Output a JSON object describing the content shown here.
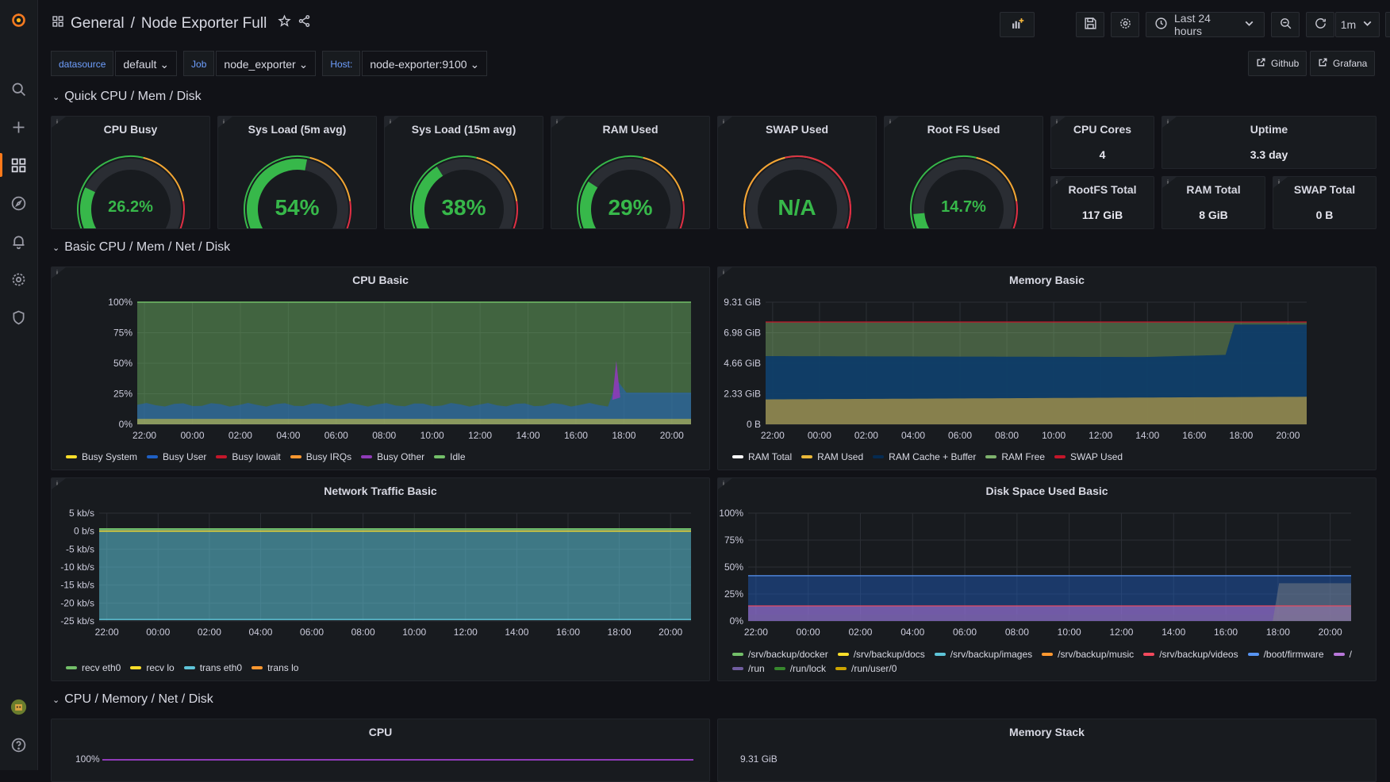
{
  "breadcrumb": {
    "folder": "General",
    "separator": "/",
    "title": "Node Exporter Full"
  },
  "time_picker": {
    "range": "Last 24 hours",
    "refresh": "1m"
  },
  "variables": [
    {
      "label": "datasource",
      "value": "default"
    },
    {
      "label": "Job",
      "value": "node_exporter"
    },
    {
      "label": "Host:",
      "value": "node-exporter:9100"
    }
  ],
  "links": {
    "github": "Github",
    "grafana": "Grafana"
  },
  "rows": {
    "quick": "Quick CPU / Mem / Disk",
    "basic": "Basic CPU / Mem / Net / Disk",
    "detail": "CPU / Memory / Net / Disk"
  },
  "gauges": [
    {
      "title": "CPU Busy",
      "value": "26.2%",
      "level": 0.262
    },
    {
      "title": "Sys Load (5m avg)",
      "value": "54%",
      "level": 0.54
    },
    {
      "title": "Sys Load (15m avg)",
      "value": "38%",
      "level": 0.38
    },
    {
      "title": "RAM Used",
      "value": "29%",
      "level": 0.29
    },
    {
      "title": "SWAP Used",
      "value": "N/A",
      "level": 0
    },
    {
      "title": "Root FS Used",
      "value": "14.7%",
      "level": 0.147
    }
  ],
  "stats": {
    "cpu_cores": {
      "title": "CPU Cores",
      "value": "4"
    },
    "uptime": {
      "title": "Uptime",
      "value": "3.3 day"
    },
    "rootfs_total": {
      "title": "RootFS Total",
      "value": "117 GiB"
    },
    "ram_total": {
      "title": "RAM Total",
      "value": "8 GiB"
    },
    "swap_total": {
      "title": "SWAP Total",
      "value": "0 B"
    }
  },
  "panels": {
    "cpu_basic": {
      "title": "CPU Basic",
      "yticks": [
        "100%",
        "75%",
        "50%",
        "25%",
        "0%"
      ],
      "xticks": [
        "22:00",
        "00:00",
        "02:00",
        "04:00",
        "06:00",
        "08:00",
        "10:00",
        "12:00",
        "14:00",
        "16:00",
        "18:00",
        "20:00"
      ],
      "legend": [
        {
          "name": "Busy System",
          "color": "#fade2a"
        },
        {
          "name": "Busy User",
          "color": "#1f60c4"
        },
        {
          "name": "Busy Iowait",
          "color": "#c4162a"
        },
        {
          "name": "Busy IRQs",
          "color": "#ff9830"
        },
        {
          "name": "Busy Other",
          "color": "#8f3bb8"
        },
        {
          "name": "Idle",
          "color": "#73bf69"
        }
      ]
    },
    "memory_basic": {
      "title": "Memory Basic",
      "yticks": [
        "9.31 GiB",
        "6.98 GiB",
        "4.66 GiB",
        "2.33 GiB",
        "0 B"
      ],
      "xticks": [
        "22:00",
        "00:00",
        "02:00",
        "04:00",
        "06:00",
        "08:00",
        "10:00",
        "12:00",
        "14:00",
        "16:00",
        "18:00",
        "20:00"
      ],
      "legend": [
        {
          "name": "RAM Total",
          "color": "#ffffff"
        },
        {
          "name": "RAM Used",
          "color": "#eab839"
        },
        {
          "name": "RAM Cache + Buffer",
          "color": "#052b51"
        },
        {
          "name": "RAM Free",
          "color": "#7eb26d"
        },
        {
          "name": "SWAP Used",
          "color": "#c4162a"
        }
      ]
    },
    "network_basic": {
      "title": "Network Traffic Basic",
      "yticks": [
        "5 kb/s",
        "0 b/s",
        "-5 kb/s",
        "-10 kb/s",
        "-15 kb/s",
        "-20 kb/s",
        "-25 kb/s"
      ],
      "xticks": [
        "22:00",
        "00:00",
        "02:00",
        "04:00",
        "06:00",
        "08:00",
        "10:00",
        "12:00",
        "14:00",
        "16:00",
        "18:00",
        "20:00"
      ],
      "legend": [
        {
          "name": "recv eth0",
          "color": "#73bf69"
        },
        {
          "name": "recv lo",
          "color": "#fade2a"
        },
        {
          "name": "trans eth0",
          "color": "#5ec4d8"
        },
        {
          "name": "trans lo",
          "color": "#ff9830"
        }
      ]
    },
    "disk_basic": {
      "title": "Disk Space Used Basic",
      "yticks": [
        "100%",
        "75%",
        "50%",
        "25%",
        "0%"
      ],
      "xticks": [
        "22:00",
        "00:00",
        "02:00",
        "04:00",
        "06:00",
        "08:00",
        "10:00",
        "12:00",
        "14:00",
        "16:00",
        "18:00",
        "20:00"
      ],
      "legend": [
        {
          "name": "/srv/backup/docker",
          "color": "#73bf69"
        },
        {
          "name": "/srv/backup/docs",
          "color": "#fade2a"
        },
        {
          "name": "/srv/backup/images",
          "color": "#5ec4d8"
        },
        {
          "name": "/srv/backup/music",
          "color": "#ff9830"
        },
        {
          "name": "/srv/backup/videos",
          "color": "#f2495c"
        },
        {
          "name": "/boot/firmware",
          "color": "#5794f2"
        },
        {
          "name": "/",
          "color": "#b877d9"
        },
        {
          "name": "/run",
          "color": "#705da0"
        },
        {
          "name": "/run/lock",
          "color": "#37872d"
        },
        {
          "name": "/run/user/0",
          "color": "#cca300"
        }
      ]
    },
    "cpu": {
      "title": "CPU",
      "ytop": "100%"
    },
    "memory_stack": {
      "title": "Memory Stack",
      "ytop": "9.31 GiB"
    }
  },
  "colors": {
    "accent": "#ff7a1a",
    "ok": "#37b84a",
    "link": "#6e9fff"
  }
}
